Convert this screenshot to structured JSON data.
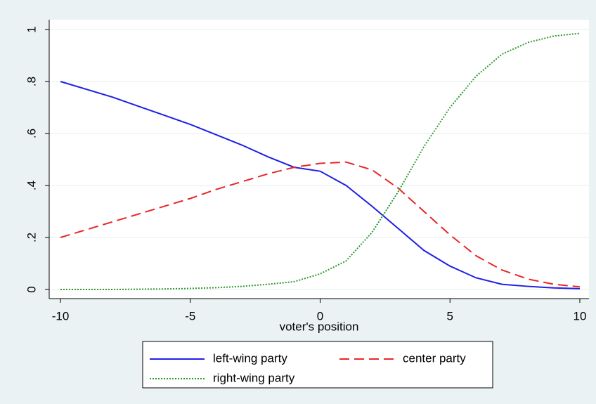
{
  "chart_data": {
    "type": "line",
    "x_label": "voter's position",
    "x": [
      -10,
      -9,
      -8,
      -7,
      -6,
      -5,
      -4,
      -3,
      -2,
      -1,
      0,
      1,
      2,
      3,
      4,
      5,
      6,
      7,
      8,
      9,
      10
    ],
    "series": [
      {
        "name": "left-wing party",
        "color": "#1f1fe6",
        "style": "solid",
        "values": [
          0.8,
          0.77,
          0.74,
          0.705,
          0.67,
          0.635,
          0.595,
          0.555,
          0.51,
          0.47,
          0.455,
          0.4,
          0.32,
          0.235,
          0.15,
          0.09,
          0.045,
          0.02,
          0.012,
          0.006,
          0.003
        ]
      },
      {
        "name": "center party",
        "color": "#e8262a",
        "style": "dashed",
        "values": [
          0.2,
          0.23,
          0.26,
          0.29,
          0.32,
          0.35,
          0.385,
          0.415,
          0.445,
          0.47,
          0.485,
          0.49,
          0.46,
          0.39,
          0.3,
          0.21,
          0.13,
          0.075,
          0.04,
          0.02,
          0.01
        ]
      },
      {
        "name": "right-wing party",
        "color": "#2e9a2e",
        "style": "dotted",
        "values": [
          0,
          0,
          0,
          0.001,
          0.002,
          0.004,
          0.007,
          0.012,
          0.02,
          0.03,
          0.06,
          0.11,
          0.22,
          0.375,
          0.55,
          0.7,
          0.82,
          0.905,
          0.95,
          0.975,
          0.985
        ]
      }
    ],
    "xlim": [
      -10,
      10
    ],
    "xticks": [
      -10,
      -5,
      0,
      5,
      10
    ],
    "ylim": [
      0,
      1
    ],
    "yticks": [
      0,
      {
        "value": 0.2,
        "label": ".2"
      },
      {
        "value": 0.4,
        "label": ".4"
      },
      {
        "value": 0.6,
        "label": ".6"
      },
      {
        "value": 0.8,
        "label": ".8"
      },
      1
    ],
    "grid": true,
    "legend": "bottom"
  }
}
